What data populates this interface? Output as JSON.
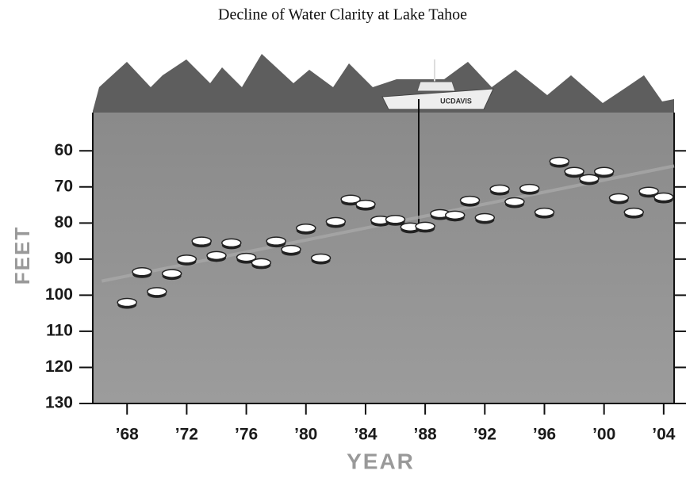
{
  "chart_data": {
    "type": "scatter",
    "title": "Decline of Water Clarity at Lake Tahoe",
    "x_label": "YEAR",
    "y_label": "FEET",
    "boat_label": "UCDAVIS",
    "x": [
      1968,
      1969,
      1970,
      1971,
      1972,
      1973,
      1974,
      1975,
      1976,
      1977,
      1978,
      1979,
      1980,
      1981,
      1982,
      1983,
      1984,
      1985,
      1986,
      1987,
      1988,
      1989,
      1990,
      1991,
      1992,
      1993,
      1994,
      1995,
      1996,
      1997,
      1998,
      1999,
      2000,
      2001,
      2002,
      2003,
      2004
    ],
    "values": [
      102,
      93.5,
      99,
      94,
      90,
      85,
      89,
      85.5,
      89.5,
      91,
      85,
      87.3,
      81.4,
      89.7,
      79.6,
      73.4,
      74.8,
      79.2,
      79,
      81.1,
      80.9,
      77.4,
      77.8,
      73.7,
      78.5,
      70.6,
      74.1,
      70.4,
      77,
      62.9,
      65.7,
      67.7,
      65.7,
      73,
      77,
      71.2,
      72.8
    ],
    "color": "#ffffff",
    "trend": {
      "x": [
        1966.3,
        2004.7
      ],
      "values": [
        96.1,
        64.2
      ]
    },
    "xlim": [
      1965.7,
      2004.7
    ],
    "xticks": [
      {
        "value": 1968,
        "label": "’68"
      },
      {
        "value": 1972,
        "label": "’72"
      },
      {
        "value": 1976,
        "label": "’76"
      },
      {
        "value": 1980,
        "label": "’80"
      },
      {
        "value": 1984,
        "label": "’84"
      },
      {
        "value": 1988,
        "label": "’88"
      },
      {
        "value": 1992,
        "label": "’92"
      },
      {
        "value": 1996,
        "label": "’96"
      },
      {
        "value": 2000,
        "label": "’00"
      },
      {
        "value": 2004,
        "label": "’04"
      }
    ],
    "ylim": [
      49.4,
      130
    ],
    "y_inverted": true,
    "yticks": [
      60,
      70,
      80,
      90,
      100,
      110,
      120,
      130
    ]
  }
}
